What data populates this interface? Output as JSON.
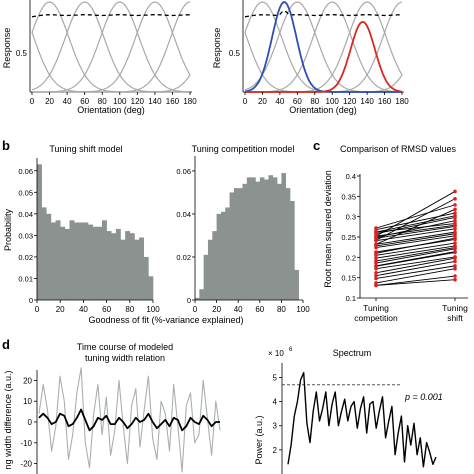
{
  "panel_a": {
    "left": {
      "ylabel": "Response",
      "xlabel": "Orientation (deg)",
      "yticks": [
        "0.5",
        "1"
      ],
      "xticks": [
        "0",
        "20",
        "40",
        "60",
        "80",
        "100",
        "120",
        "140",
        "160",
        "180"
      ]
    },
    "right": {
      "ylabel": "Response",
      "xlabel": "Orientation (deg)",
      "yticks": [
        "0.5",
        "1"
      ],
      "xticks": [
        "0",
        "20",
        "40",
        "60",
        "80",
        "100",
        "120",
        "140",
        "160",
        "180"
      ]
    }
  },
  "panel_b": {
    "letter": "b",
    "xlabel": "Goodness of fit (%-variance explained)",
    "ylabel": "Probability",
    "left": {
      "title": "Tuning shift model",
      "yticks": [
        "0",
        "0.01",
        "0.02",
        "0.03",
        "0.04",
        "0.05",
        "0.06"
      ],
      "xticks": [
        "0",
        "20",
        "40",
        "60",
        "80",
        "100"
      ]
    },
    "right": {
      "title": "Tuning competition model",
      "yticks": [
        "0",
        "0.02",
        "0.04",
        "0.06"
      ],
      "xticks": [
        "0",
        "20",
        "40",
        "60",
        "80",
        "100"
      ]
    }
  },
  "panel_c": {
    "letter": "c",
    "title": "Comparison of RMSD values",
    "ylabel": "Root mean squared deviation",
    "yticks": [
      "0.1",
      "0.15",
      "0.2",
      "0.25",
      "0.3",
      "0.35",
      "0.4"
    ],
    "xtick1_l1": "Tuning",
    "xtick1_l2": "competition",
    "xtick2_l1": "Tuning",
    "xtick2_l2": "shift"
  },
  "panel_d": {
    "letter": "d",
    "left_title_l1": "Time course of modeled",
    "left_title_l2": "tuning width relation",
    "left_ylabel": "ng width difference (a.u.)",
    "left_yticks": [
      "20",
      "10",
      "0",
      "-10",
      "-20"
    ],
    "right_title": "Spectrum",
    "right_ylabel": "Power (a.u.)",
    "right_yticks": [
      "5",
      "4",
      "3",
      "2"
    ],
    "right_exponent": "× 10",
    "right_exponent_power": "6",
    "pvalue_label": "p = 0.001"
  },
  "chart_data": [
    {
      "type": "line",
      "id": "a-left",
      "x": [
        0,
        180
      ],
      "curve_centers": [
        -20,
        20,
        60,
        100,
        140,
        180,
        220
      ],
      "curve_peak": 1.0,
      "curve_sigma_deg": 22,
      "envelope_style": "dashed",
      "xlim": [
        0,
        180
      ],
      "ylim": [
        0,
        1
      ],
      "colors": {
        "curves": "#a8a8a8",
        "envelope": "#000000"
      }
    },
    {
      "type": "line",
      "id": "a-right",
      "curve_centers": [
        -20,
        20,
        60,
        100,
        140,
        180,
        220
      ],
      "curve_sigma_deg": 22,
      "highlighted": [
        {
          "center": 45,
          "peak": 1.0,
          "sigma_deg": 14,
          "color": "#2b4fb4"
        },
        {
          "center": 135,
          "peak": 0.78,
          "sigma_deg": 14,
          "color": "#d8281e"
        }
      ],
      "xlim": [
        0,
        180
      ],
      "ylim": [
        0,
        1
      ]
    },
    {
      "type": "bar",
      "id": "b-left",
      "bin_width": 4,
      "bin_starts": [
        0,
        4,
        8,
        12,
        16,
        20,
        24,
        28,
        32,
        36,
        40,
        44,
        48,
        52,
        56,
        60,
        64,
        68,
        72,
        76,
        80,
        84,
        88,
        92,
        96
      ],
      "values": [
        0.063,
        0.043,
        0.04,
        0.036,
        0.037,
        0.034,
        0.033,
        0.037,
        0.036,
        0.036,
        0.036,
        0.035,
        0.034,
        0.034,
        0.037,
        0.032,
        0.031,
        0.033,
        0.028,
        0.032,
        0.031,
        0.028,
        0.029,
        0.02,
        0.011
      ],
      "xlim": [
        0,
        100
      ],
      "ylim": [
        0,
        0.065
      ],
      "color": "#8c9290"
    },
    {
      "type": "bar",
      "id": "b-right",
      "bin_width": 4,
      "bin_starts": [
        0,
        4,
        8,
        12,
        16,
        20,
        24,
        28,
        32,
        36,
        40,
        44,
        48,
        52,
        56,
        60,
        64,
        68,
        72,
        76,
        80,
        84,
        88,
        92,
        96
      ],
      "values": [
        0.001,
        0.005,
        0.021,
        0.028,
        0.032,
        0.04,
        0.041,
        0.043,
        0.05,
        0.052,
        0.052,
        0.054,
        0.057,
        0.057,
        0.055,
        0.057,
        0.056,
        0.058,
        0.057,
        0.054,
        0.059,
        0.052,
        0.046,
        0.014,
        0.0
      ],
      "xlim": [
        0,
        100
      ],
      "ylim": [
        0,
        0.066
      ],
      "color": "#8c9290"
    },
    {
      "type": "line",
      "id": "c",
      "categories": [
        "Tuning competition",
        "Tuning shift"
      ],
      "pairs": [
        [
          0.252,
          0.362
        ],
        [
          0.242,
          0.344
        ],
        [
          0.272,
          0.329
        ],
        [
          0.232,
          0.318
        ],
        [
          0.268,
          0.309
        ],
        [
          0.262,
          0.302
        ],
        [
          0.258,
          0.298
        ],
        [
          0.249,
          0.29
        ],
        [
          0.262,
          0.283
        ],
        [
          0.252,
          0.279
        ],
        [
          0.247,
          0.276
        ],
        [
          0.241,
          0.27
        ],
        [
          0.232,
          0.262
        ],
        [
          0.228,
          0.258
        ],
        [
          0.224,
          0.253
        ],
        [
          0.21,
          0.247
        ],
        [
          0.213,
          0.244
        ],
        [
          0.205,
          0.235
        ],
        [
          0.198,
          0.228
        ],
        [
          0.191,
          0.224
        ],
        [
          0.186,
          0.221
        ],
        [
          0.179,
          0.214
        ],
        [
          0.178,
          0.212
        ],
        [
          0.172,
          0.201
        ],
        [
          0.162,
          0.198
        ],
        [
          0.155,
          0.19
        ],
        [
          0.148,
          0.179
        ],
        [
          0.137,
          0.172
        ],
        [
          0.131,
          0.154
        ],
        [
          0.131,
          0.145
        ]
      ],
      "ylim": [
        0.1,
        0.4
      ],
      "colors": {
        "line": "#000000",
        "marker": "#e02020"
      }
    },
    {
      "type": "line",
      "id": "d-left",
      "series": [
        {
          "color": "#a8b0ae",
          "values": [
            4,
            18,
            6,
            -14,
            -2,
            22,
            10,
            -18,
            -6,
            14,
            26,
            -10,
            -22,
            4,
            18,
            -6,
            12,
            -16,
            -4,
            20,
            -2,
            -20,
            8,
            16,
            -12,
            6,
            22,
            -8,
            -18,
            10,
            4,
            -14,
            18,
            -2,
            -24,
            8,
            14,
            -10,
            -6,
            20,
            2,
            -16,
            10,
            -4
          ]
        },
        {
          "color": "#000000",
          "values": [
            2,
            4,
            2,
            -1,
            0,
            4,
            3,
            -2,
            -1,
            2,
            6,
            1,
            -4,
            -2,
            2,
            1,
            3,
            -1,
            -1,
            2,
            0,
            -3,
            -1,
            2,
            0,
            1,
            4,
            0,
            -3,
            -1,
            1,
            -2,
            2,
            1,
            -4,
            -2,
            2,
            0,
            -1,
            3,
            1,
            -2,
            0,
            0
          ]
        }
      ],
      "ylim": [
        -25,
        25
      ]
    },
    {
      "type": "line",
      "id": "d-right",
      "values": [
        1.4,
        2.2,
        3.4,
        4.0,
        4.9,
        5.2,
        3.1,
        2.3,
        3.6,
        4.4,
        3.2,
        3.7,
        4.4,
        3.0,
        3.9,
        4.4,
        3.0,
        3.6,
        4.1,
        3.2,
        3.8,
        4.0,
        2.9,
        3.7,
        4.2,
        2.7,
        3.9,
        4.0,
        2.9,
        3.6,
        4.2,
        2.5,
        3.2,
        3.8,
        1.8,
        2.7,
        3.4,
        1.5,
        3.0,
        2.2,
        3.1,
        1.8,
        2.5,
        1.3,
        2.3,
        1.9,
        1.4,
        1.7
      ],
      "threshold": 4.7,
      "threshold_style": "dashed",
      "ylim": [
        1.0,
        5.6
      ],
      "y_scale_exponent": 6
    }
  ]
}
